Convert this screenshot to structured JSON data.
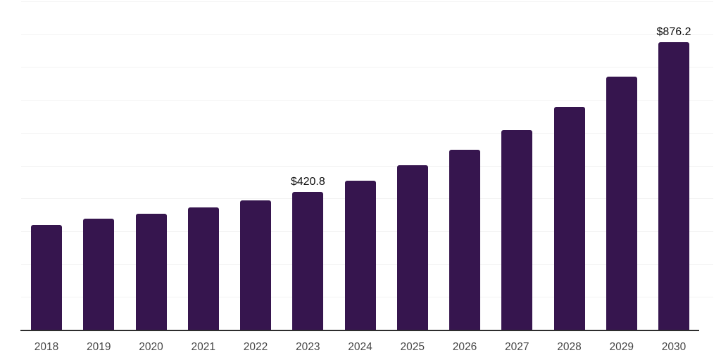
{
  "page": {
    "background": "#ffffff"
  },
  "colors": {
    "bar": "#36154E",
    "axis_line": "#2d2d2d",
    "gridline": "#f2f2f2",
    "tick_label": "#474747",
    "value_label": "#0f0f0f"
  },
  "chart_data": {
    "type": "bar",
    "title": "",
    "xlabel": "",
    "ylabel": "",
    "categories": [
      "2018",
      "2019",
      "2020",
      "2021",
      "2022",
      "2023",
      "2024",
      "2025",
      "2026",
      "2027",
      "2028",
      "2029",
      "2030"
    ],
    "values": [
      320,
      339,
      354,
      373,
      394,
      420.8,
      455,
      502,
      549,
      608,
      679,
      771,
      876.2
    ],
    "value_labels": [
      {
        "index": 5,
        "text": "$420.8"
      },
      {
        "index": 12,
        "text": "$876.2"
      }
    ],
    "ylim": [
      0,
      1000
    ],
    "gridline_interval": 100,
    "grid": "horizontal-only",
    "y_tick_labels_shown": false,
    "legend": "none"
  }
}
